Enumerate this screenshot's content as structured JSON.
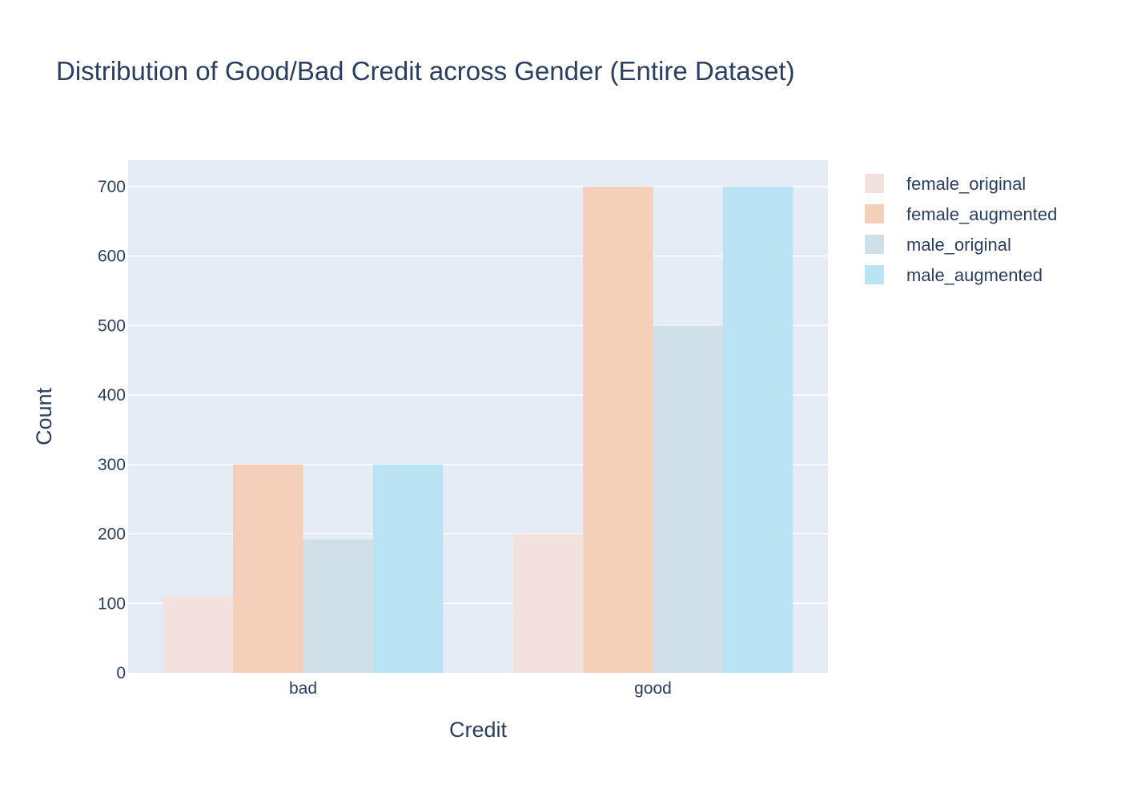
{
  "chart_data": {
    "type": "bar",
    "title": "Distribution of Good/Bad Credit across Gender (Entire Dataset)",
    "xlabel": "Credit",
    "ylabel": "Count",
    "categories": [
      "bad",
      "good"
    ],
    "ylim": [
      0,
      738
    ],
    "yticks": [
      "0",
      "100",
      "200",
      "300",
      "400",
      "500",
      "600",
      "700"
    ],
    "grid": true,
    "legend_position": "top-right",
    "series": [
      {
        "name": "female_original",
        "values": [
          110,
          200
        ],
        "color": "#f2e1dd"
      },
      {
        "name": "female_augmented",
        "values": [
          300,
          700
        ],
        "color": "#f4cfb9"
      },
      {
        "name": "male_original",
        "values": [
          192,
          500
        ],
        "color": "#d0e0e8"
      },
      {
        "name": "male_augmented",
        "values": [
          300,
          700
        ],
        "color": "#bae3f4"
      }
    ],
    "colors": {
      "plot_background": "#e5ecf6",
      "gridline": "#ffffff",
      "text": "#2a3f5f"
    }
  }
}
